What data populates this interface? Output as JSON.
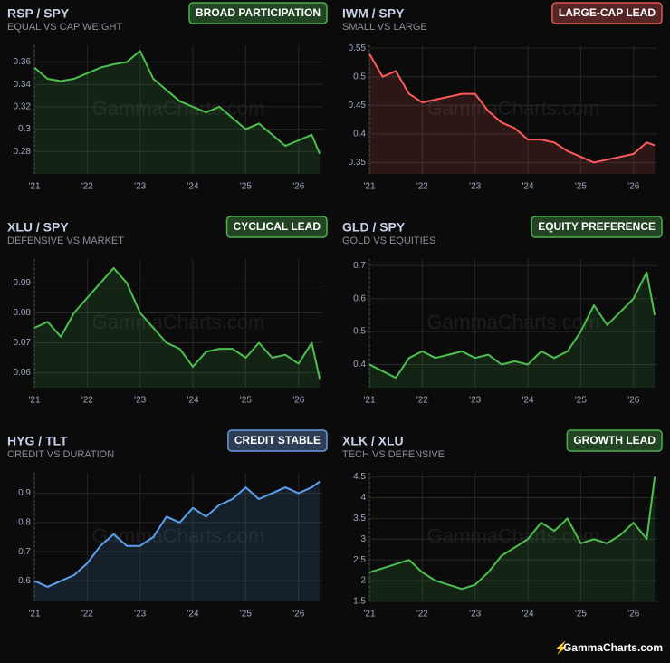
{
  "brand": "GammaCharts.com",
  "chart_data": [
    {
      "type": "line",
      "title": "RSP / SPY",
      "subtitle": "EQUAL VS CAP WEIGHT",
      "badge": "BROAD PARTICIPATION",
      "badge_color": "#4caf50",
      "color": "#4cc04f",
      "x": [
        2021,
        2021.25,
        2021.5,
        2021.75,
        2022,
        2022.25,
        2022.5,
        2022.75,
        2023,
        2023.25,
        2023.5,
        2023.75,
        2024,
        2024.25,
        2024.5,
        2024.75,
        2025,
        2025.25,
        2025.5,
        2025.75,
        2026,
        2026.25,
        2026.4
      ],
      "values": [
        0.355,
        0.345,
        0.343,
        0.345,
        0.35,
        0.355,
        0.358,
        0.36,
        0.37,
        0.345,
        0.335,
        0.325,
        0.32,
        0.315,
        0.32,
        0.31,
        0.3,
        0.305,
        0.295,
        0.285,
        0.29,
        0.295,
        0.278
      ],
      "xlim": [
        2021,
        2026.45
      ],
      "xticks": [
        {
          "value": 2021,
          "label": "'21"
        },
        {
          "value": 2022,
          "label": "'22"
        },
        {
          "value": 2023,
          "label": "'23"
        },
        {
          "value": 2024,
          "label": "'24"
        },
        {
          "value": 2025,
          "label": "'25"
        },
        {
          "value": 2026,
          "label": "'26"
        }
      ],
      "ylim": [
        0.26,
        0.375
      ],
      "yticks": [
        0.28,
        0.3,
        0.32,
        0.34,
        0.36
      ],
      "grid": true
    },
    {
      "type": "line",
      "title": "IWM / SPY",
      "subtitle": "SMALL VS LARGE",
      "badge": "LARGE-CAP LEAD",
      "badge_color": "#e05555",
      "color": "#ff5a5a",
      "x": [
        2021,
        2021.25,
        2021.5,
        2021.75,
        2022,
        2022.25,
        2022.5,
        2022.75,
        2023,
        2023.25,
        2023.5,
        2023.75,
        2024,
        2024.25,
        2024.5,
        2024.75,
        2025,
        2025.25,
        2025.5,
        2025.75,
        2026,
        2026.25,
        2026.4
      ],
      "values": [
        0.54,
        0.5,
        0.51,
        0.47,
        0.455,
        0.46,
        0.465,
        0.47,
        0.47,
        0.44,
        0.42,
        0.41,
        0.39,
        0.39,
        0.385,
        0.37,
        0.36,
        0.35,
        0.355,
        0.36,
        0.365,
        0.385,
        0.38
      ],
      "xlim": [
        2021,
        2026.45
      ],
      "xticks": [
        {
          "value": 2021,
          "label": "'21"
        },
        {
          "value": 2022,
          "label": "'22"
        },
        {
          "value": 2023,
          "label": "'23"
        },
        {
          "value": 2024,
          "label": "'24"
        },
        {
          "value": 2025,
          "label": "'25"
        },
        {
          "value": 2026,
          "label": "'26"
        }
      ],
      "ylim": [
        0.33,
        0.555
      ],
      "yticks": [
        0.35,
        0.4,
        0.45,
        0.5,
        0.55
      ],
      "grid": true
    },
    {
      "type": "line",
      "title": "XLU / SPY",
      "subtitle": "DEFENSIVE VS MARKET",
      "badge": "CYCLICAL LEAD",
      "badge_color": "#4caf50",
      "color": "#4cc04f",
      "x": [
        2021,
        2021.25,
        2021.5,
        2021.75,
        2022,
        2022.25,
        2022.5,
        2022.75,
        2023,
        2023.25,
        2023.5,
        2023.75,
        2024,
        2024.25,
        2024.5,
        2024.75,
        2025,
        2025.25,
        2025.5,
        2025.75,
        2026,
        2026.25,
        2026.4
      ],
      "values": [
        0.075,
        0.077,
        0.072,
        0.08,
        0.085,
        0.09,
        0.095,
        0.09,
        0.08,
        0.075,
        0.07,
        0.068,
        0.062,
        0.067,
        0.068,
        0.068,
        0.065,
        0.07,
        0.065,
        0.066,
        0.063,
        0.07,
        0.058
      ],
      "xlim": [
        2021,
        2026.45
      ],
      "xticks": [
        {
          "value": 2021,
          "label": "'21"
        },
        {
          "value": 2022,
          "label": "'22"
        },
        {
          "value": 2023,
          "label": "'23"
        },
        {
          "value": 2024,
          "label": "'24"
        },
        {
          "value": 2025,
          "label": "'25"
        },
        {
          "value": 2026,
          "label": "'26"
        }
      ],
      "ylim": [
        0.055,
        0.098
      ],
      "yticks": [
        0.06,
        0.07,
        0.08,
        0.09
      ],
      "grid": true
    },
    {
      "type": "line",
      "title": "GLD / SPY",
      "subtitle": "GOLD VS EQUITIES",
      "badge": "EQUITY PREFERENCE",
      "badge_color": "#4caf50",
      "color": "#4cc04f",
      "x": [
        2021,
        2021.25,
        2021.5,
        2021.75,
        2022,
        2022.25,
        2022.5,
        2022.75,
        2023,
        2023.25,
        2023.5,
        2023.75,
        2024,
        2024.25,
        2024.5,
        2024.75,
        2025,
        2025.25,
        2025.5,
        2025.75,
        2026,
        2026.25,
        2026.4
      ],
      "values": [
        0.4,
        0.38,
        0.36,
        0.42,
        0.44,
        0.42,
        0.43,
        0.44,
        0.42,
        0.43,
        0.4,
        0.41,
        0.4,
        0.44,
        0.42,
        0.44,
        0.5,
        0.58,
        0.52,
        0.56,
        0.6,
        0.68,
        0.55
      ],
      "xlim": [
        2021,
        2026.45
      ],
      "xticks": [
        {
          "value": 2021,
          "label": "'21"
        },
        {
          "value": 2022,
          "label": "'22"
        },
        {
          "value": 2023,
          "label": "'23"
        },
        {
          "value": 2024,
          "label": "'24"
        },
        {
          "value": 2025,
          "label": "'25"
        },
        {
          "value": 2026,
          "label": "'26"
        }
      ],
      "ylim": [
        0.33,
        0.72
      ],
      "yticks": [
        0.4,
        0.5,
        0.6,
        0.7
      ],
      "grid": true
    },
    {
      "type": "line",
      "title": "HYG / TLT",
      "subtitle": "CREDIT VS DURATION",
      "badge": "CREDIT STABLE",
      "badge_color": "#6a9ae0",
      "color": "#5aa0f0",
      "x": [
        2021,
        2021.25,
        2021.5,
        2021.75,
        2022,
        2022.25,
        2022.5,
        2022.75,
        2023,
        2023.25,
        2023.5,
        2023.75,
        2024,
        2024.25,
        2024.5,
        2024.75,
        2025,
        2025.25,
        2025.5,
        2025.75,
        2026,
        2026.25,
        2026.4
      ],
      "values": [
        0.6,
        0.58,
        0.6,
        0.62,
        0.66,
        0.72,
        0.76,
        0.72,
        0.72,
        0.75,
        0.82,
        0.8,
        0.85,
        0.82,
        0.86,
        0.88,
        0.92,
        0.88,
        0.9,
        0.92,
        0.9,
        0.92,
        0.94
      ],
      "xlim": [
        2021,
        2026.45
      ],
      "xticks": [
        {
          "value": 2021,
          "label": "'21"
        },
        {
          "value": 2022,
          "label": "'22"
        },
        {
          "value": 2023,
          "label": "'23"
        },
        {
          "value": 2024,
          "label": "'24"
        },
        {
          "value": 2025,
          "label": "'25"
        },
        {
          "value": 2026,
          "label": "'26"
        }
      ],
      "ylim": [
        0.53,
        0.97
      ],
      "yticks": [
        0.6,
        0.7,
        0.8,
        0.9
      ],
      "grid": true
    },
    {
      "type": "line",
      "title": "XLK / XLU",
      "subtitle": "TECH VS DEFENSIVE",
      "badge": "GROWTH LEAD",
      "badge_color": "#4caf50",
      "color": "#4cc04f",
      "x": [
        2021,
        2021.25,
        2021.5,
        2021.75,
        2022,
        2022.25,
        2022.5,
        2022.75,
        2023,
        2023.25,
        2023.5,
        2023.75,
        2024,
        2024.25,
        2024.5,
        2024.75,
        2025,
        2025.25,
        2025.5,
        2025.75,
        2026,
        2026.25,
        2026.4
      ],
      "values": [
        2.2,
        2.3,
        2.4,
        2.5,
        2.2,
        2.0,
        1.9,
        1.8,
        1.9,
        2.2,
        2.6,
        2.8,
        3.0,
        3.4,
        3.2,
        3.5,
        2.9,
        3.0,
        2.9,
        3.1,
        3.4,
        3.0,
        4.5
      ],
      "xlim": [
        2021,
        2026.45
      ],
      "xticks": [
        {
          "value": 2021,
          "label": "'21"
        },
        {
          "value": 2022,
          "label": "'22"
        },
        {
          "value": 2023,
          "label": "'23"
        },
        {
          "value": 2024,
          "label": "'24"
        },
        {
          "value": 2025,
          "label": "'25"
        },
        {
          "value": 2026,
          "label": "'26"
        }
      ],
      "ylim": [
        1.5,
        4.6
      ],
      "yticks": [
        1.5,
        2,
        2.5,
        3,
        3.5,
        4,
        4.5
      ],
      "grid": true
    }
  ]
}
